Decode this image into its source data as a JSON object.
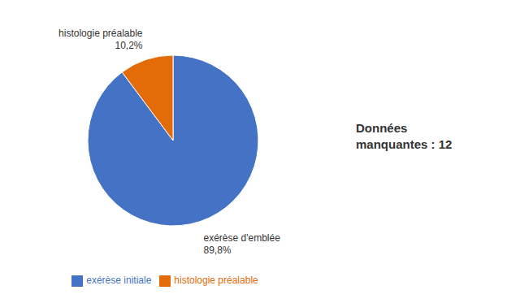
{
  "chart_data": {
    "type": "pie",
    "categories": [
      "exérèse initiale",
      "histologie préalable"
    ],
    "values": [
      89.8,
      10.2
    ],
    "value_labels": [
      "exérèse d'emblée\n89,8%",
      "histologie préalable\n10,2%"
    ],
    "colors": [
      "#4472C4",
      "#E36C09"
    ],
    "annotation": "Données\nmanquantes : 12",
    "legend": "bottom",
    "data_labels": true
  }
}
